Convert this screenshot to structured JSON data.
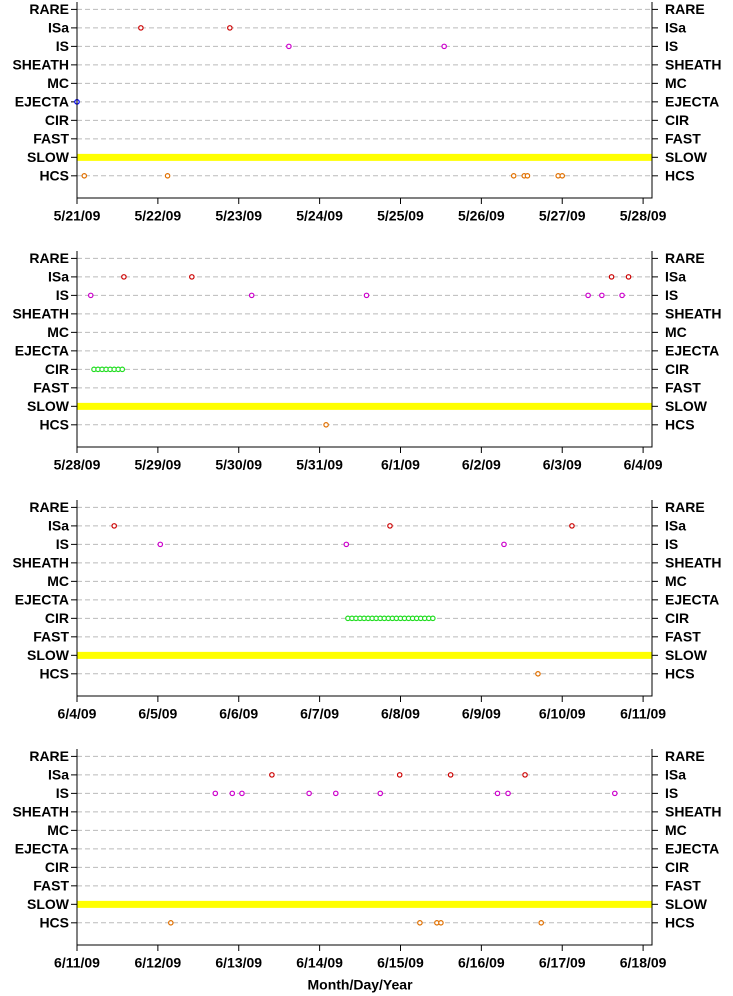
{
  "chart_data": [
    {
      "type": "scatter",
      "grid": true,
      "xlim": [
        141,
        148.11
      ],
      "xticks": [
        {
          "value": 141,
          "label": "5/21/09"
        },
        {
          "value": 142,
          "label": "5/22/09"
        },
        {
          "value": 143,
          "label": "5/23/09"
        },
        {
          "value": 144,
          "label": "5/24/09"
        },
        {
          "value": 145,
          "label": "5/25/09"
        },
        {
          "value": 146,
          "label": "5/26/09"
        },
        {
          "value": 147,
          "label": "5/27/09"
        },
        {
          "value": 148,
          "label": "5/28/09"
        }
      ],
      "ylim": [
        -1.2,
        9.4
      ],
      "yticks": [
        {
          "value": 9,
          "label": "RARE"
        },
        {
          "value": 8,
          "label": "ISa"
        },
        {
          "value": 7,
          "label": "IS"
        },
        {
          "value": 6,
          "label": "SHEATH"
        },
        {
          "value": 5,
          "label": "MC"
        },
        {
          "value": 4,
          "label": "EJECTA"
        },
        {
          "value": 3,
          "label": "CIR"
        },
        {
          "value": 2,
          "label": "FAST"
        },
        {
          "value": 1,
          "label": "SLOW"
        },
        {
          "value": 0,
          "label": "HCS"
        }
      ],
      "series": [
        {
          "type": "line",
          "color": "#ffff00",
          "x": [
            141,
            148.11
          ],
          "y": [
            1,
            1
          ]
        },
        {
          "color": "#cc0000",
          "x": [
            141.79,
            142.89
          ],
          "y": [
            8,
            8
          ]
        },
        {
          "color": "#cc00cc",
          "x": [
            143.62,
            145.54
          ],
          "y": [
            7,
            7
          ]
        },
        {
          "color": "#0000ff",
          "x": [
            141.0
          ],
          "y": [
            4
          ]
        },
        {
          "color": "#e07000",
          "x": [
            141.09,
            142.12,
            146.4,
            146.53,
            146.57,
            146.95,
            147.0
          ],
          "y": [
            0,
            0,
            0,
            0,
            0,
            0,
            0
          ]
        }
      ]
    },
    {
      "type": "scatter",
      "grid": true,
      "xlim": [
        148,
        155.11
      ],
      "xticks": [
        {
          "value": 148,
          "label": "5/28/09"
        },
        {
          "value": 149,
          "label": "5/29/09"
        },
        {
          "value": 150,
          "label": "5/30/09"
        },
        {
          "value": 151,
          "label": "5/31/09"
        },
        {
          "value": 152,
          "label": "6/1/09"
        },
        {
          "value": 153,
          "label": "6/2/09"
        },
        {
          "value": 154,
          "label": "6/3/09"
        },
        {
          "value": 155,
          "label": "6/4/09"
        }
      ],
      "ylim": [
        -1.2,
        9.4
      ],
      "yticks": [
        {
          "value": 9,
          "label": "RARE"
        },
        {
          "value": 8,
          "label": "ISa"
        },
        {
          "value": 7,
          "label": "IS"
        },
        {
          "value": 6,
          "label": "SHEATH"
        },
        {
          "value": 5,
          "label": "MC"
        },
        {
          "value": 4,
          "label": "EJECTA"
        },
        {
          "value": 3,
          "label": "CIR"
        },
        {
          "value": 2,
          "label": "FAST"
        },
        {
          "value": 1,
          "label": "SLOW"
        },
        {
          "value": 0,
          "label": "HCS"
        }
      ],
      "series": [
        {
          "type": "line",
          "color": "#ffff00",
          "x": [
            148,
            155.11
          ],
          "y": [
            1,
            1
          ]
        },
        {
          "color": "#cc0000",
          "x": [
            148.58,
            149.42,
            154.61,
            154.82
          ],
          "y": [
            8,
            8,
            8,
            8
          ]
        },
        {
          "color": "#cc00cc",
          "x": [
            148.17,
            150.16,
            151.58,
            154.32,
            154.49,
            154.74
          ],
          "y": [
            7,
            7,
            7,
            7,
            7,
            7
          ]
        },
        {
          "color": "#22dd22",
          "x": [
            148.21,
            148.26,
            148.31,
            148.36,
            148.41,
            148.46,
            148.51,
            148.56
          ],
          "y": [
            3,
            3,
            3,
            3,
            3,
            3,
            3,
            3
          ]
        },
        {
          "color": "#e07000",
          "x": [
            151.08
          ],
          "y": [
            0
          ]
        }
      ]
    },
    {
      "type": "scatter",
      "grid": true,
      "xlim": [
        155,
        162.11
      ],
      "xticks": [
        {
          "value": 155,
          "label": "6/4/09"
        },
        {
          "value": 156,
          "label": "6/5/09"
        },
        {
          "value": 157,
          "label": "6/6/09"
        },
        {
          "value": 158,
          "label": "6/7/09"
        },
        {
          "value": 159,
          "label": "6/8/09"
        },
        {
          "value": 160,
          "label": "6/9/09"
        },
        {
          "value": 161,
          "label": "6/10/09"
        },
        {
          "value": 162,
          "label": "6/11/09"
        }
      ],
      "ylim": [
        -1.2,
        9.4
      ],
      "yticks": [
        {
          "value": 9,
          "label": "RARE"
        },
        {
          "value": 8,
          "label": "ISa"
        },
        {
          "value": 7,
          "label": "IS"
        },
        {
          "value": 6,
          "label": "SHEATH"
        },
        {
          "value": 5,
          "label": "MC"
        },
        {
          "value": 4,
          "label": "EJECTA"
        },
        {
          "value": 3,
          "label": "CIR"
        },
        {
          "value": 2,
          "label": "FAST"
        },
        {
          "value": 1,
          "label": "SLOW"
        },
        {
          "value": 0,
          "label": "HCS"
        }
      ],
      "series": [
        {
          "type": "line",
          "color": "#ffff00",
          "x": [
            155,
            162.11
          ],
          "y": [
            1,
            1
          ]
        },
        {
          "color": "#cc0000",
          "x": [
            155.46,
            158.87,
            161.12
          ],
          "y": [
            8,
            8,
            8
          ]
        },
        {
          "color": "#cc00cc",
          "x": [
            156.03,
            158.33,
            160.28
          ],
          "y": [
            7,
            7,
            7
          ]
        },
        {
          "color": "#22dd22",
          "x": [
            158.35,
            158.4,
            158.45,
            158.5,
            158.55,
            158.6,
            158.65,
            158.7,
            158.75,
            158.8,
            158.85,
            158.9,
            158.95,
            159.0,
            159.05,
            159.1,
            159.15,
            159.2,
            159.25,
            159.3,
            159.35,
            159.4
          ],
          "y": [
            3,
            3,
            3,
            3,
            3,
            3,
            3,
            3,
            3,
            3,
            3,
            3,
            3,
            3,
            3,
            3,
            3,
            3,
            3,
            3,
            3,
            3
          ]
        },
        {
          "color": "#e07000",
          "x": [
            160.7
          ],
          "y": [
            0
          ]
        }
      ]
    },
    {
      "type": "scatter",
      "grid": true,
      "xlabel": "Month/Day/Year",
      "xlim": [
        162,
        169.11
      ],
      "xticks": [
        {
          "value": 162,
          "label": "6/11/09"
        },
        {
          "value": 163,
          "label": "6/12/09"
        },
        {
          "value": 164,
          "label": "6/13/09"
        },
        {
          "value": 165,
          "label": "6/14/09"
        },
        {
          "value": 166,
          "label": "6/15/09"
        },
        {
          "value": 167,
          "label": "6/16/09"
        },
        {
          "value": 168,
          "label": "6/17/09"
        },
        {
          "value": 169,
          "label": "6/18/09"
        }
      ],
      "ylim": [
        -1.2,
        9.4
      ],
      "yticks": [
        {
          "value": 9,
          "label": "RARE"
        },
        {
          "value": 8,
          "label": "ISa"
        },
        {
          "value": 7,
          "label": "IS"
        },
        {
          "value": 6,
          "label": "SHEATH"
        },
        {
          "value": 5,
          "label": "MC"
        },
        {
          "value": 4,
          "label": "EJECTA"
        },
        {
          "value": 3,
          "label": "CIR"
        },
        {
          "value": 2,
          "label": "FAST"
        },
        {
          "value": 1,
          "label": "SLOW"
        },
        {
          "value": 0,
          "label": "HCS"
        }
      ],
      "series": [
        {
          "type": "line",
          "color": "#ffff00",
          "x": [
            162,
            169.11
          ],
          "y": [
            1,
            1
          ]
        },
        {
          "color": "#cc0000",
          "x": [
            164.41,
            165.99,
            166.62,
            167.54
          ],
          "y": [
            8,
            8,
            8,
            8
          ]
        },
        {
          "color": "#cc00cc",
          "x": [
            163.71,
            163.92,
            164.04,
            164.87,
            165.2,
            165.75,
            167.2,
            167.33,
            168.65
          ],
          "y": [
            7,
            7,
            7,
            7,
            7,
            7,
            7,
            7,
            7
          ]
        },
        {
          "color": "#e07000",
          "x": [
            163.16,
            166.24,
            166.45,
            166.5,
            167.74
          ],
          "y": [
            0,
            0,
            0,
            0,
            0
          ]
        }
      ]
    }
  ]
}
